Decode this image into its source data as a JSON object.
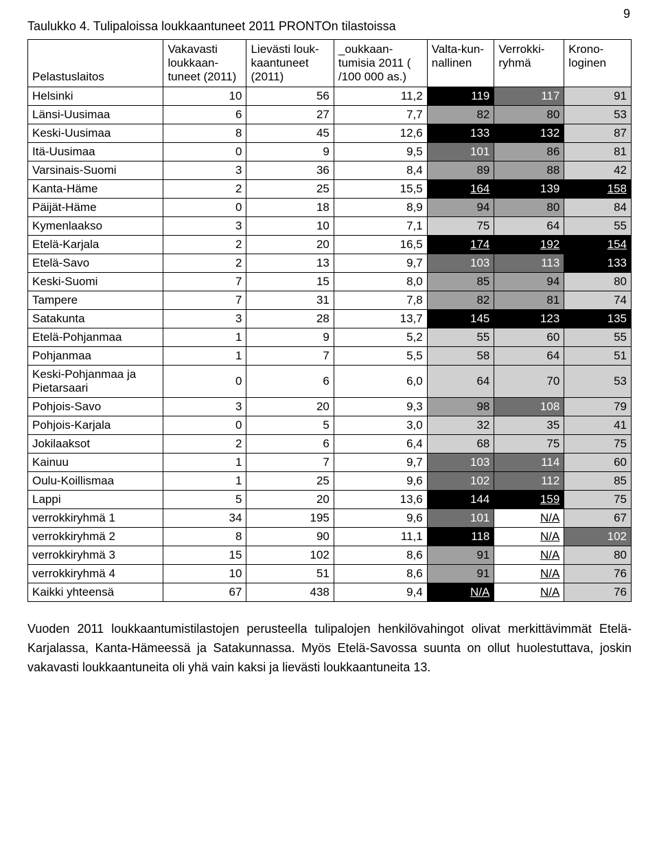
{
  "page_number": "9",
  "title": "Taulukko 4. Tulipaloissa loukkaantuneet 2011 PRONTOn tilastoissa",
  "headers": [
    "Pelastuslaitos",
    "Vakavasti loukkaan-tuneet (2011)",
    "Lievästi louk-kaantuneet (2011)",
    "_oukkaan-tumisia 2011 ( /100 000 as.)",
    "Valta-kun-nallinen",
    "Verrokki-ryhmä",
    "Krono-loginen"
  ],
  "colors": {
    "black": {
      "bg": "#000000",
      "fg": "#ffffff"
    },
    "dark": {
      "bg": "#707070",
      "fg": "#ffffff"
    },
    "mid": {
      "bg": "#a0a0a0",
      "fg": "#000000"
    },
    "light": {
      "bg": "#d0d0d0",
      "fg": "#000000"
    },
    "none": {
      "bg": "#ffffff",
      "fg": "#000000"
    }
  },
  "rows": [
    {
      "label": "Helsinki",
      "v": [
        "10",
        "56",
        "11,2",
        "119",
        "117",
        "91"
      ],
      "shade": [
        "none",
        "none",
        "none",
        "black",
        "dark",
        "light"
      ],
      "u": [
        0,
        0,
        0,
        0,
        0,
        0
      ]
    },
    {
      "label": "Länsi-Uusimaa",
      "v": [
        "6",
        "27",
        "7,7",
        "82",
        "80",
        "53"
      ],
      "shade": [
        "none",
        "none",
        "none",
        "mid",
        "mid",
        "light"
      ],
      "u": [
        0,
        0,
        0,
        0,
        0,
        0
      ]
    },
    {
      "label": "Keski-Uusimaa",
      "v": [
        "8",
        "45",
        "12,6",
        "133",
        "132",
        "87"
      ],
      "shade": [
        "none",
        "none",
        "none",
        "black",
        "black",
        "light"
      ],
      "u": [
        0,
        0,
        0,
        0,
        0,
        0
      ]
    },
    {
      "label": "Itä-Uusimaa",
      "v": [
        "0",
        "9",
        "9,5",
        "101",
        "86",
        "81"
      ],
      "shade": [
        "none",
        "none",
        "none",
        "dark",
        "mid",
        "light"
      ],
      "u": [
        0,
        0,
        0,
        0,
        0,
        0
      ]
    },
    {
      "label": "Varsinais-Suomi",
      "v": [
        "3",
        "36",
        "8,4",
        "89",
        "88",
        "42"
      ],
      "shade": [
        "none",
        "none",
        "none",
        "mid",
        "mid",
        "light"
      ],
      "u": [
        0,
        0,
        0,
        0,
        0,
        0
      ]
    },
    {
      "label": "Kanta-Häme",
      "v": [
        "2",
        "25",
        "15,5",
        "164",
        "139",
        "158"
      ],
      "shade": [
        "none",
        "none",
        "none",
        "black",
        "black",
        "black"
      ],
      "u": [
        0,
        0,
        0,
        1,
        0,
        1
      ]
    },
    {
      "label": "Päijät-Häme",
      "v": [
        "0",
        "18",
        "8,9",
        "94",
        "80",
        "84"
      ],
      "shade": [
        "none",
        "none",
        "none",
        "mid",
        "mid",
        "light"
      ],
      "u": [
        0,
        0,
        0,
        0,
        0,
        0
      ]
    },
    {
      "label": "Kymenlaakso",
      "v": [
        "3",
        "10",
        "7,1",
        "75",
        "64",
        "55"
      ],
      "shade": [
        "none",
        "none",
        "none",
        "light",
        "light",
        "light"
      ],
      "u": [
        0,
        0,
        0,
        0,
        0,
        0
      ]
    },
    {
      "label": "Etelä-Karjala",
      "v": [
        "2",
        "20",
        "16,5",
        "174",
        "192",
        "154"
      ],
      "shade": [
        "none",
        "none",
        "none",
        "black",
        "black",
        "black"
      ],
      "u": [
        0,
        0,
        0,
        1,
        1,
        1
      ]
    },
    {
      "label": "Etelä-Savo",
      "v": [
        "2",
        "13",
        "9,7",
        "103",
        "113",
        "133"
      ],
      "shade": [
        "none",
        "none",
        "none",
        "dark",
        "dark",
        "black"
      ],
      "u": [
        0,
        0,
        0,
        0,
        0,
        0
      ]
    },
    {
      "label": "Keski-Suomi",
      "v": [
        "7",
        "15",
        "8,0",
        "85",
        "94",
        "80"
      ],
      "shade": [
        "none",
        "none",
        "none",
        "mid",
        "mid",
        "light"
      ],
      "u": [
        0,
        0,
        0,
        0,
        0,
        0
      ]
    },
    {
      "label": "Tampere",
      "v": [
        "7",
        "31",
        "7,8",
        "82",
        "81",
        "74"
      ],
      "shade": [
        "none",
        "none",
        "none",
        "mid",
        "mid",
        "light"
      ],
      "u": [
        0,
        0,
        0,
        0,
        0,
        0
      ]
    },
    {
      "label": "Satakunta",
      "v": [
        "3",
        "28",
        "13,7",
        "145",
        "123",
        "135"
      ],
      "shade": [
        "none",
        "none",
        "none",
        "black",
        "black",
        "black"
      ],
      "u": [
        0,
        0,
        0,
        0,
        0,
        0
      ]
    },
    {
      "label": "Etelä-Pohjanmaa",
      "v": [
        "1",
        "9",
        "5,2",
        "55",
        "60",
        "55"
      ],
      "shade": [
        "none",
        "none",
        "none",
        "light",
        "light",
        "light"
      ],
      "u": [
        0,
        0,
        0,
        0,
        0,
        0
      ]
    },
    {
      "label": "Pohjanmaa",
      "v": [
        "1",
        "7",
        "5,5",
        "58",
        "64",
        "51"
      ],
      "shade": [
        "none",
        "none",
        "none",
        "light",
        "light",
        "light"
      ],
      "u": [
        0,
        0,
        0,
        0,
        0,
        0
      ]
    },
    {
      "label": "Keski-Pohjanmaa ja Pietarsaari",
      "v": [
        "0",
        "6",
        "6,0",
        "64",
        "70",
        "53"
      ],
      "shade": [
        "none",
        "none",
        "none",
        "light",
        "light",
        "light"
      ],
      "u": [
        0,
        0,
        0,
        0,
        0,
        0
      ]
    },
    {
      "label": "Pohjois-Savo",
      "v": [
        "3",
        "20",
        "9,3",
        "98",
        "108",
        "79"
      ],
      "shade": [
        "none",
        "none",
        "none",
        "mid",
        "dark",
        "light"
      ],
      "u": [
        0,
        0,
        0,
        0,
        0,
        0
      ]
    },
    {
      "label": "Pohjois-Karjala",
      "v": [
        "0",
        "5",
        "3,0",
        "32",
        "35",
        "41"
      ],
      "shade": [
        "none",
        "none",
        "none",
        "light",
        "light",
        "light"
      ],
      "u": [
        0,
        0,
        0,
        0,
        0,
        0
      ]
    },
    {
      "label": "Jokilaaksot",
      "v": [
        "2",
        "6",
        "6,4",
        "68",
        "75",
        "75"
      ],
      "shade": [
        "none",
        "none",
        "none",
        "light",
        "light",
        "light"
      ],
      "u": [
        0,
        0,
        0,
        0,
        0,
        0
      ]
    },
    {
      "label": "Kainuu",
      "v": [
        "1",
        "7",
        "9,7",
        "103",
        "114",
        "60"
      ],
      "shade": [
        "none",
        "none",
        "none",
        "dark",
        "dark",
        "light"
      ],
      "u": [
        0,
        0,
        0,
        0,
        0,
        0
      ]
    },
    {
      "label": "Oulu-Koillismaa",
      "v": [
        "1",
        "25",
        "9,6",
        "102",
        "112",
        "85"
      ],
      "shade": [
        "none",
        "none",
        "none",
        "dark",
        "dark",
        "light"
      ],
      "u": [
        0,
        0,
        0,
        0,
        0,
        0
      ]
    },
    {
      "label": "Lappi",
      "v": [
        "5",
        "20",
        "13,6",
        "144",
        "159",
        "75"
      ],
      "shade": [
        "none",
        "none",
        "none",
        "black",
        "black",
        "light"
      ],
      "u": [
        0,
        0,
        0,
        0,
        1,
        0
      ]
    },
    {
      "label": "verrokkiryhmä 1",
      "v": [
        "34",
        "195",
        "9,6",
        "101",
        "N/A",
        "67"
      ],
      "shade": [
        "none",
        "none",
        "none",
        "dark",
        "none",
        "light"
      ],
      "u": [
        0,
        0,
        0,
        0,
        1,
        0
      ]
    },
    {
      "label": "verrokkiryhmä 2",
      "v": [
        "8",
        "90",
        "11,1",
        "118",
        "N/A",
        "102"
      ],
      "shade": [
        "none",
        "none",
        "none",
        "black",
        "none",
        "dark"
      ],
      "u": [
        0,
        0,
        0,
        0,
        1,
        0
      ]
    },
    {
      "label": "verrokkiryhmä 3",
      "v": [
        "15",
        "102",
        "8,6",
        "91",
        "N/A",
        "80"
      ],
      "shade": [
        "none",
        "none",
        "none",
        "mid",
        "none",
        "light"
      ],
      "u": [
        0,
        0,
        0,
        0,
        1,
        0
      ]
    },
    {
      "label": "verrokkiryhmä 4",
      "v": [
        "10",
        "51",
        "8,6",
        "91",
        "N/A",
        "76"
      ],
      "shade": [
        "none",
        "none",
        "none",
        "mid",
        "none",
        "light"
      ],
      "u": [
        0,
        0,
        0,
        0,
        1,
        0
      ]
    },
    {
      "label": "Kaikki yhteensä",
      "v": [
        "67",
        "438",
        "9,4",
        "N/A",
        "N/A",
        "76"
      ],
      "shade": [
        "none",
        "none",
        "none",
        "black",
        "none",
        "light"
      ],
      "u": [
        0,
        0,
        0,
        1,
        1,
        0
      ]
    }
  ],
  "paragraph": "Vuoden 2011 loukkaantumistilastojen perusteella tulipalojen henkilövahingot olivat merkittävimmät Etelä-Karjalassa, Kanta-Hämeessä ja Satakunnassa. Myös Etelä-Savossa suunta on ollut huolestuttava, joskin vakavasti loukkaantuneita oli yhä vain kaksi ja lievästi loukkaantuneita 13."
}
